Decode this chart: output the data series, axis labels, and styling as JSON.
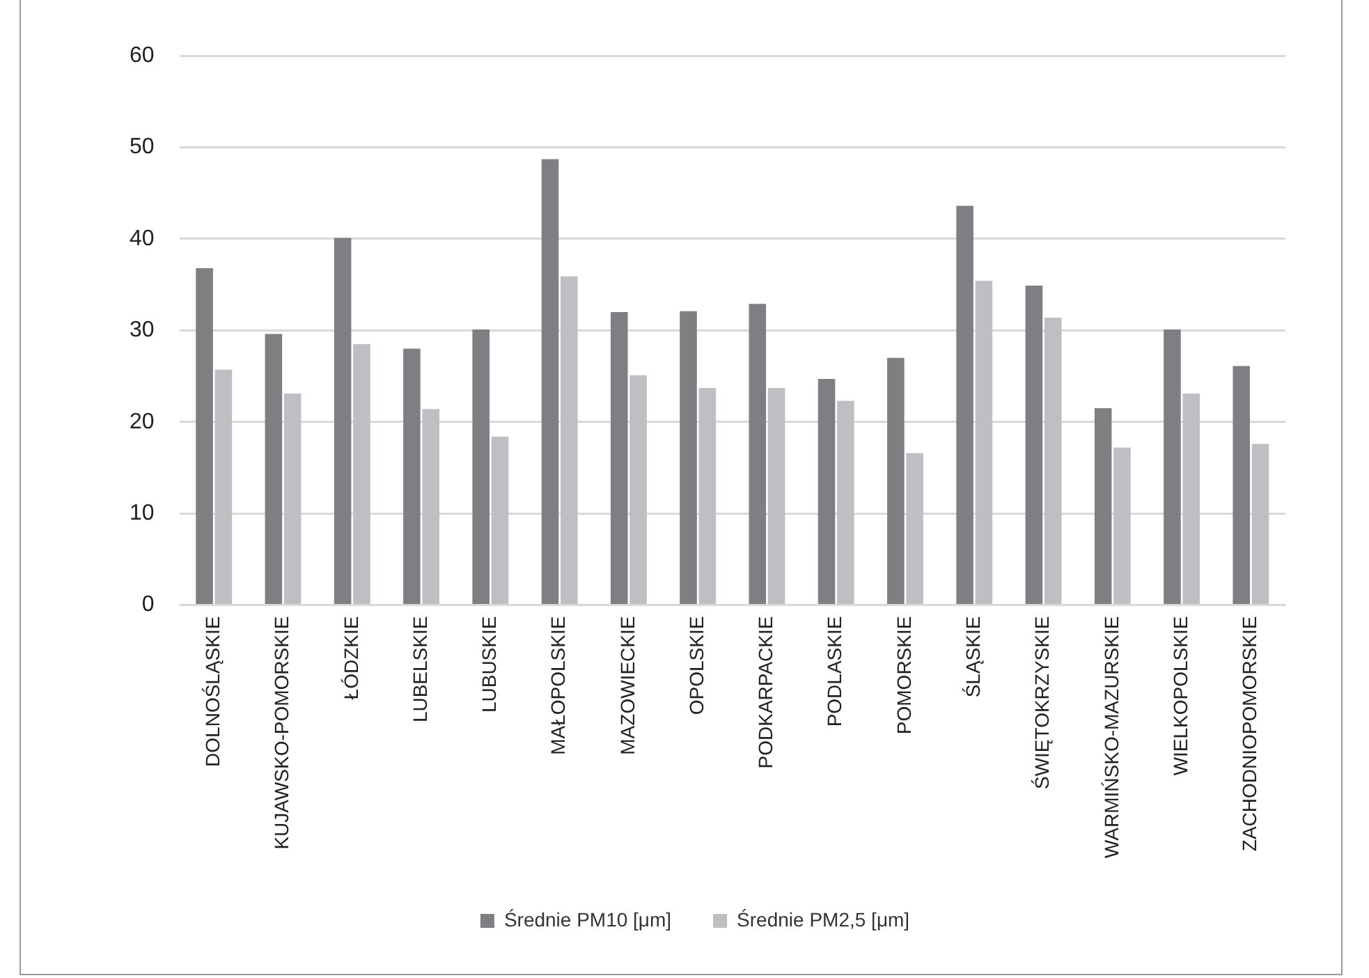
{
  "chart_data": {
    "type": "bar",
    "categories": [
      "DOLNOŚLĄSKIE",
      "KUJAWSKO-POMORSKIE",
      "ŁÓDZKIE",
      "LUBELSKIE",
      "LUBUSKIE",
      "MAŁOPOLSKIE",
      "MAZOWIECKIE",
      "OPOLSKIE",
      "PODKARPACKIE",
      "PODLASKIE",
      "POMORSKIE",
      "ŚLĄSKIE",
      "ŚWIĘTOKRZYSKIE",
      "WARMIŃSKO-MAZURSKIE",
      "WIELKOPOLSKIE",
      "ZACHODNIOPOMORSKIE"
    ],
    "series": [
      {
        "name": "Średnie PM10 [μm]",
        "color": "#7f7f83",
        "values": [
          36.8,
          29.6,
          40.1,
          28.0,
          30.1,
          48.7,
          32.0,
          32.1,
          32.9,
          24.7,
          27.0,
          43.6,
          34.9,
          21.5,
          30.1,
          26.1
        ]
      },
      {
        "name": "Średnie PM2,5 [μm]",
        "color": "#bebfc2",
        "values": [
          25.7,
          23.1,
          28.5,
          21.4,
          18.4,
          35.9,
          25.1,
          23.7,
          23.7,
          22.3,
          16.6,
          35.4,
          31.4,
          17.2,
          23.1,
          17.6
        ]
      }
    ],
    "ylim": [
      0,
      60
    ],
    "yticks": [
      0,
      10,
      20,
      30,
      40,
      50,
      60
    ],
    "grid": "y",
    "legend": "bottom"
  }
}
